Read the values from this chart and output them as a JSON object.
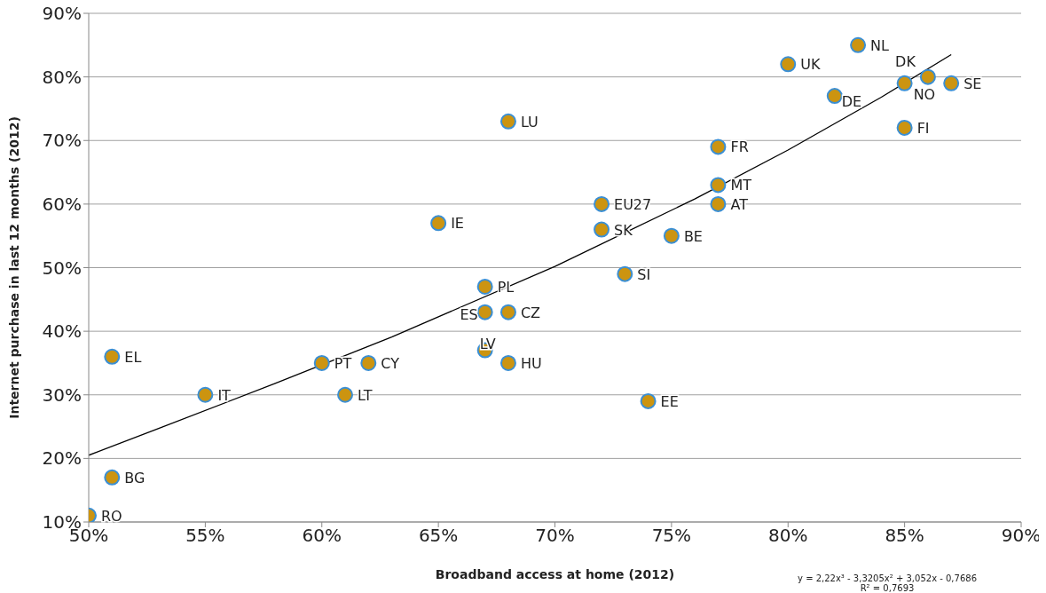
{
  "chart_data": {
    "type": "scatter",
    "xlabel": "Broadband access at home (2012)",
    "ylabel": "Internet purchase in last 12 months (2012)",
    "xlim": [
      50,
      90
    ],
    "ylim": [
      10,
      90
    ],
    "xticks": [
      {
        "value": 50,
        "label": "50%"
      },
      {
        "value": 55,
        "label": "55%"
      },
      {
        "value": 60,
        "label": "60%"
      },
      {
        "value": 65,
        "label": "65%"
      },
      {
        "value": 70,
        "label": "70%"
      },
      {
        "value": 75,
        "label": "75%"
      },
      {
        "value": 80,
        "label": "80%"
      },
      {
        "value": 85,
        "label": "85%"
      },
      {
        "value": 90,
        "label": "90%"
      }
    ],
    "yticks": [
      {
        "value": 10,
        "label": "10%"
      },
      {
        "value": 20,
        "label": "20%"
      },
      {
        "value": 30,
        "label": "30%"
      },
      {
        "value": 40,
        "label": "40%"
      },
      {
        "value": 50,
        "label": "50%"
      },
      {
        "value": 60,
        "label": "60%"
      },
      {
        "value": 70,
        "label": "70%"
      },
      {
        "value": 80,
        "label": "80%"
      },
      {
        "value": 90,
        "label": "90%"
      }
    ],
    "grid": "y",
    "marker": "circle",
    "legend": false,
    "series": [
      {
        "color": "#cc9410",
        "x": [
          50,
          51,
          51,
          55,
          60,
          62,
          61,
          65,
          68,
          67,
          67,
          68,
          67,
          68,
          72,
          72,
          73,
          74,
          75,
          77,
          77,
          77,
          80,
          82,
          83,
          86,
          85,
          87,
          85
        ],
        "values": [
          11,
          17,
          36,
          30,
          35,
          35,
          30,
          57,
          73,
          47,
          43,
          43,
          37,
          35,
          60,
          56,
          49,
          29,
          55,
          69,
          63,
          60,
          82,
          77,
          85,
          80,
          79,
          79,
          72
        ]
      },
      {
        "type": "line",
        "color": "#000000",
        "marker": "none",
        "x": [
          50,
          53,
          58,
          63,
          70,
          76,
          80,
          84,
          87
        ],
        "values": [
          20.5,
          24.7,
          31.8,
          39.1,
          50.2,
          60.8,
          68.5,
          76.8,
          83.5
        ]
      }
    ],
    "annotations": [
      {
        "text": "RO",
        "x": 50,
        "y": 11
      },
      {
        "text": "BG",
        "x": 51,
        "y": 17
      },
      {
        "text": "EL",
        "x": 51,
        "y": 36
      },
      {
        "text": "IT",
        "x": 55,
        "y": 30
      },
      {
        "text": "PT",
        "x": 60,
        "y": 35
      },
      {
        "text": "CY",
        "x": 62,
        "y": 35
      },
      {
        "text": "LT",
        "x": 61,
        "y": 30
      },
      {
        "text": "IE",
        "x": 65,
        "y": 57
      },
      {
        "text": "LU",
        "x": 68,
        "y": 73
      },
      {
        "text": "PL",
        "x": 67,
        "y": 47
      },
      {
        "text": "ES",
        "x": 67,
        "y": 43
      },
      {
        "text": "CZ",
        "x": 68,
        "y": 43
      },
      {
        "text": "LV",
        "x": 67,
        "y": 37
      },
      {
        "text": "HU",
        "x": 68,
        "y": 35
      },
      {
        "text": "EU27",
        "x": 72,
        "y": 60
      },
      {
        "text": "SK",
        "x": 72,
        "y": 56
      },
      {
        "text": "SI",
        "x": 73,
        "y": 49
      },
      {
        "text": "EE",
        "x": 74,
        "y": 29
      },
      {
        "text": "BE",
        "x": 75,
        "y": 55
      },
      {
        "text": "FR",
        "x": 77,
        "y": 69
      },
      {
        "text": "MT",
        "x": 77,
        "y": 63
      },
      {
        "text": "AT",
        "x": 77,
        "y": 60
      },
      {
        "text": "UK",
        "x": 80,
        "y": 82
      },
      {
        "text": "DE",
        "x": 82,
        "y": 77
      },
      {
        "text": "NL",
        "x": 83,
        "y": 85
      },
      {
        "text": "DK",
        "x": 86,
        "y": 80
      },
      {
        "text": "NO",
        "x": 85,
        "y": 79
      },
      {
        "text": "SE",
        "x": 87,
        "y": 79
      },
      {
        "text": "FI",
        "x": 85,
        "y": 72
      },
      "y = 2,22x³ - 3,3205x² + 3,052x - 0,7686",
      "R² = 0,7693"
    ]
  }
}
